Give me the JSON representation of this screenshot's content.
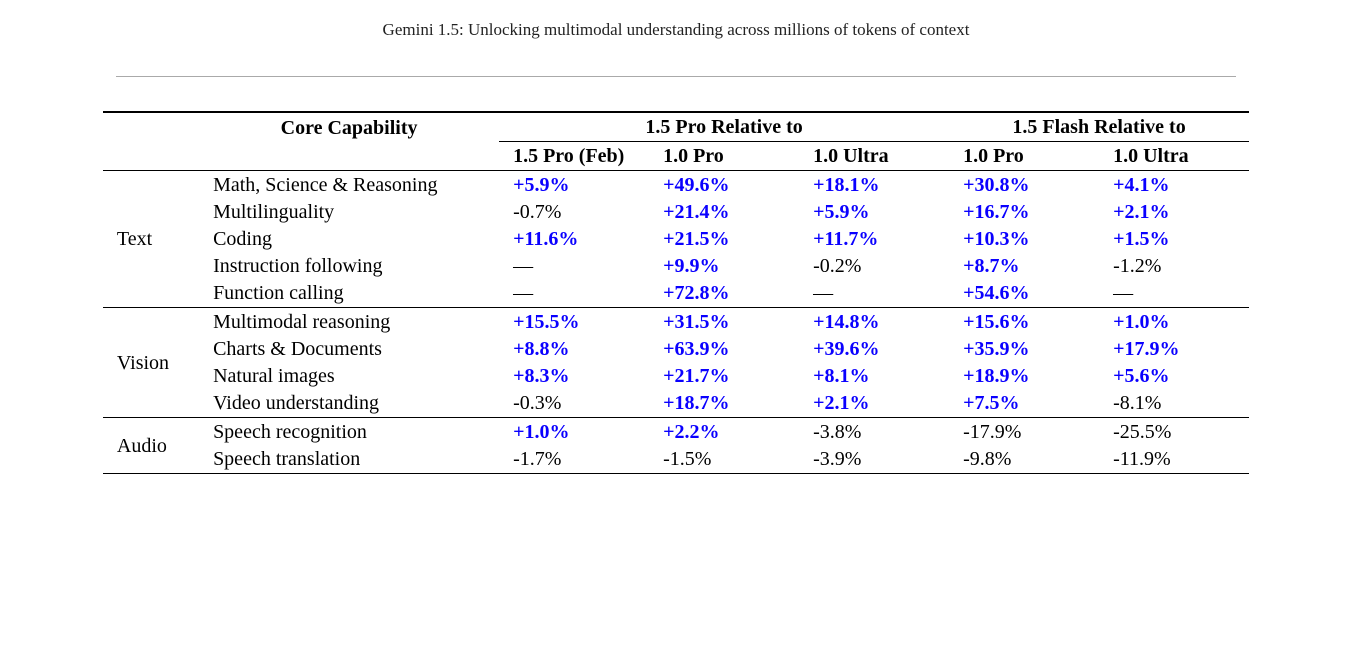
{
  "colors": {
    "positive": "#0a00ff",
    "text": "#000000",
    "rule": "#000000",
    "title_rule": "#aaaaaa",
    "background": "#ffffff"
  },
  "typography": {
    "font_family": "Charter/serif",
    "body_fontsize": 20,
    "title_fontsize": 17
  },
  "page_title": "Gemini 1.5: Unlocking multimodal understanding across millions of tokens of context",
  "table": {
    "header": {
      "core_capability": "Core Capability",
      "pro_relative": "1.5 Pro Relative to",
      "flash_relative": "1.5 Flash Relative to",
      "subcols": {
        "pro_feb": "1.5 Pro (Feb)",
        "one_pro_a": "1.0 Pro",
        "one_ultra_a": "1.0 Ultra",
        "one_pro_b": "1.0 Pro",
        "one_ultra_b": "1.0 Ultra"
      }
    },
    "groups": [
      {
        "name": "Text",
        "rows": [
          {
            "capability": "Math, Science & Reasoning",
            "v": [
              "+5.9%",
              "+49.6%",
              "+18.1%",
              "+30.8%",
              "+4.1%"
            ],
            "pos": [
              true,
              true,
              true,
              true,
              true
            ]
          },
          {
            "capability": "Multilinguality",
            "v": [
              "-0.7%",
              "+21.4%",
              "+5.9%",
              "+16.7%",
              "+2.1%"
            ],
            "pos": [
              false,
              true,
              true,
              true,
              true
            ]
          },
          {
            "capability": "Coding",
            "v": [
              "+11.6%",
              "+21.5%",
              "+11.7%",
              "+10.3%",
              "+1.5%"
            ],
            "pos": [
              true,
              true,
              true,
              true,
              true
            ]
          },
          {
            "capability": "Instruction following",
            "v": [
              "—",
              "+9.9%",
              "-0.2%",
              "+8.7%",
              "-1.2%"
            ],
            "pos": [
              false,
              true,
              false,
              true,
              false
            ]
          },
          {
            "capability": "Function calling",
            "v": [
              "—",
              "+72.8%",
              "—",
              "+54.6%",
              "—"
            ],
            "pos": [
              false,
              true,
              false,
              true,
              false
            ]
          }
        ]
      },
      {
        "name": "Vision",
        "rows": [
          {
            "capability": "Multimodal reasoning",
            "v": [
              "+15.5%",
              "+31.5%",
              "+14.8%",
              "+15.6%",
              "+1.0%"
            ],
            "pos": [
              true,
              true,
              true,
              true,
              true
            ]
          },
          {
            "capability": "Charts & Documents",
            "v": [
              "+8.8%",
              "+63.9%",
              "+39.6%",
              "+35.9%",
              "+17.9%"
            ],
            "pos": [
              true,
              true,
              true,
              true,
              true
            ]
          },
          {
            "capability": "Natural images",
            "v": [
              "+8.3%",
              "+21.7%",
              "+8.1%",
              "+18.9%",
              "+5.6%"
            ],
            "pos": [
              true,
              true,
              true,
              true,
              true
            ]
          },
          {
            "capability": "Video understanding",
            "v": [
              "-0.3%",
              "+18.7%",
              "+2.1%",
              "+7.5%",
              "-8.1%"
            ],
            "pos": [
              false,
              true,
              true,
              true,
              false
            ]
          }
        ]
      },
      {
        "name": "Audio",
        "rows": [
          {
            "capability": "Speech recognition",
            "v": [
              "+1.0%",
              "+2.2%",
              "-3.8%",
              "-17.9%",
              "-25.5%"
            ],
            "pos": [
              true,
              true,
              false,
              false,
              false
            ]
          },
          {
            "capability": "Speech translation",
            "v": [
              "-1.7%",
              "-1.5%",
              "-3.9%",
              "-9.8%",
              "-11.9%"
            ],
            "pos": [
              false,
              false,
              false,
              false,
              false
            ]
          }
        ]
      }
    ]
  }
}
